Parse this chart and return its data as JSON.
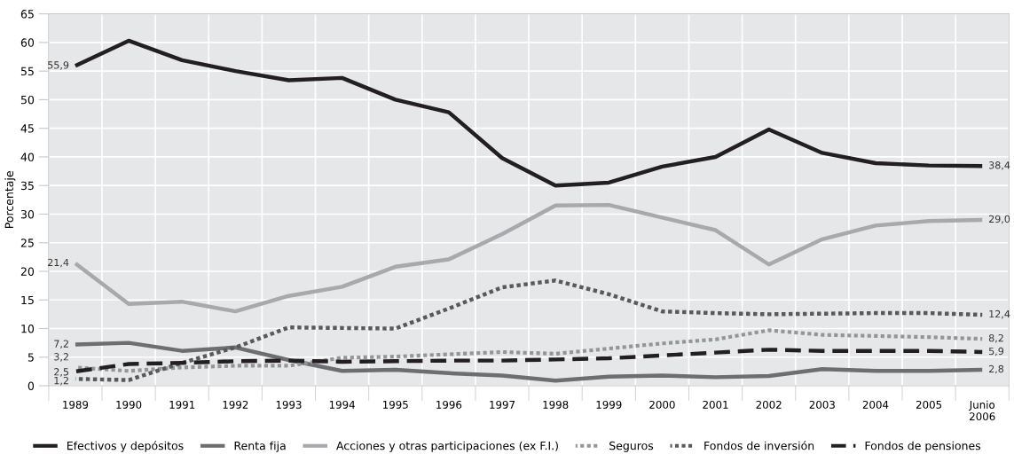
{
  "chart_data": {
    "type": "line",
    "ylabel": "Porcentaje",
    "categories": [
      "1989",
      "1990",
      "1991",
      "1992",
      "1993",
      "1994",
      "1995",
      "1996",
      "1997",
      "1998",
      "1999",
      "2000",
      "2001",
      "2002",
      "2003",
      "2004",
      "2005",
      "Junio\n2006"
    ],
    "ylim": [
      0,
      65
    ],
    "yticks": [
      0,
      5,
      10,
      15,
      20,
      25,
      30,
      35,
      40,
      45,
      50,
      55,
      60,
      65
    ],
    "grid": true,
    "legend": "bottom",
    "series": [
      {
        "name": "Efectivos y depósitos",
        "color": "#231f20",
        "line_style": "solid",
        "values": [
          55.9,
          60.3,
          56.9,
          55.0,
          53.4,
          53.8,
          50.0,
          47.8,
          39.8,
          35.0,
          35.5,
          38.3,
          40.0,
          44.8,
          40.7,
          38.9,
          38.5,
          38.4
        ],
        "value_labels": [
          "55,9",
          null,
          null,
          null,
          null,
          null,
          null,
          null,
          null,
          null,
          null,
          null,
          null,
          null,
          null,
          null,
          null,
          "38,4"
        ]
      },
      {
        "name": "Renta fija",
        "color": "#6d6e71",
        "line_style": "solid",
        "values": [
          7.2,
          7.5,
          6.1,
          6.7,
          4.5,
          2.6,
          2.8,
          2.2,
          1.8,
          0.9,
          1.6,
          1.8,
          1.5,
          1.7,
          2.9,
          2.6,
          2.6,
          2.8
        ],
        "value_labels": [
          "7,2",
          null,
          null,
          null,
          null,
          null,
          null,
          null,
          null,
          null,
          null,
          null,
          null,
          null,
          null,
          null,
          null,
          "2,8"
        ]
      },
      {
        "name": "Acciones y otras participaciones (ex F.I.)",
        "color": "#a7a9ac",
        "line_style": "solid",
        "values": [
          21.4,
          14.3,
          14.7,
          13.0,
          15.7,
          17.3,
          20.8,
          22.1,
          26.5,
          31.5,
          31.6,
          29.4,
          27.2,
          21.2,
          25.6,
          28.0,
          28.8,
          29.0
        ],
        "value_labels": [
          "21,4",
          null,
          null,
          null,
          null,
          null,
          null,
          null,
          null,
          null,
          null,
          null,
          null,
          null,
          null,
          null,
          null,
          "29,0"
        ]
      },
      {
        "name": "Seguros",
        "color": "#939598",
        "line_style": "dotted",
        "values": [
          3.2,
          2.6,
          3.2,
          3.5,
          3.5,
          4.9,
          5.1,
          5.5,
          5.9,
          5.6,
          6.5,
          7.4,
          8.1,
          9.7,
          8.9,
          8.7,
          8.5,
          8.2
        ],
        "value_labels": [
          "3,2",
          null,
          null,
          null,
          null,
          null,
          null,
          null,
          null,
          null,
          null,
          null,
          null,
          null,
          null,
          null,
          null,
          "8,2"
        ]
      },
      {
        "name": "Fondos de inversión",
        "color": "#58595b",
        "line_style": "dotted",
        "values": [
          1.2,
          1.0,
          4.0,
          6.7,
          10.2,
          10.1,
          10.0,
          13.5,
          17.2,
          18.4,
          16.0,
          13.0,
          12.7,
          12.5,
          12.6,
          12.7,
          12.7,
          12.4
        ],
        "value_labels": [
          "1,2",
          null,
          null,
          null,
          null,
          null,
          null,
          null,
          null,
          null,
          null,
          null,
          null,
          null,
          null,
          null,
          null,
          "12,4"
        ]
      },
      {
        "name": "Fondos de pensiones",
        "color": "#231f20",
        "line_style": "dashed",
        "values": [
          2.5,
          3.8,
          4.0,
          4.3,
          4.4,
          4.2,
          4.3,
          4.4,
          4.4,
          4.6,
          4.8,
          5.3,
          5.8,
          6.3,
          6.1,
          6.1,
          6.1,
          5.9
        ],
        "value_labels": [
          "2,5",
          null,
          null,
          null,
          null,
          null,
          null,
          null,
          null,
          null,
          null,
          null,
          null,
          null,
          null,
          null,
          null,
          "5,9"
        ]
      }
    ]
  }
}
